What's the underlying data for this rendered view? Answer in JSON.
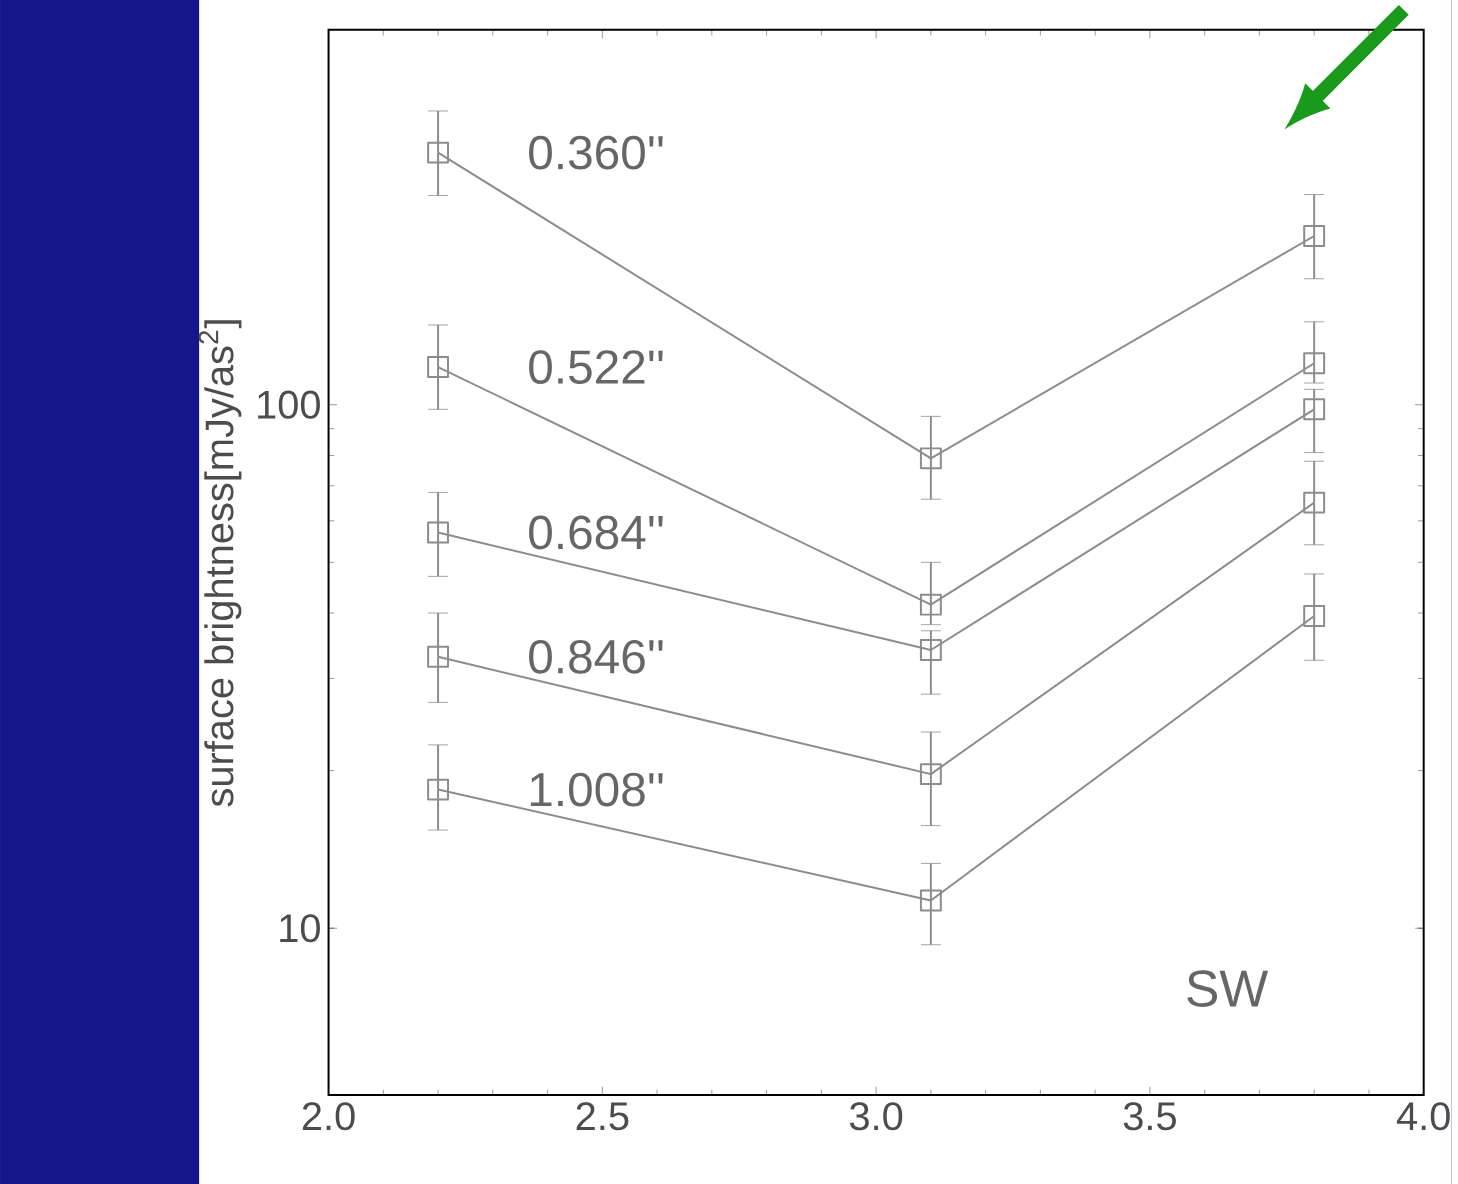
{
  "chart_data": {
    "type": "line",
    "ylabel": "surface brightness[mJy/as$^{2}$]",
    "log": "y",
    "marker": "square",
    "line_style": "solid",
    "legend": "left",
    "x": [
      2.2,
      3.1,
      3.8
    ],
    "xlim": [
      2.0,
      4.0
    ],
    "xticks": [
      {
        "value": 2.0,
        "label": "2.0"
      },
      {
        "value": 2.5,
        "label": "2.5"
      },
      {
        "value": 3.0,
        "label": "3.0"
      },
      {
        "value": 3.5,
        "label": "3.5"
      },
      {
        "value": 4.0,
        "label": "4.0"
      }
    ],
    "ylim": [
      4.8,
      520
    ],
    "yticks": [
      10,
      100
    ],
    "series": [
      {
        "name": "0.360''",
        "color": "#8c8c8c",
        "values": [
          303,
          79,
          210
        ],
        "errors": [
          [
            251,
            364
          ],
          [
            66,
            95
          ],
          [
            174,
            252
          ]
        ]
      },
      {
        "name": "0.522''",
        "color": "#8c8c8c",
        "values": [
          118,
          41.5,
          120
        ],
        "errors": [
          [
            98,
            142
          ],
          [
            38,
            50
          ],
          [
            110,
            144
          ]
        ]
      },
      {
        "name": "0.684''",
        "color": "#8c8c8c",
        "values": [
          57,
          34,
          98
        ],
        "errors": [
          [
            47,
            68
          ],
          [
            28,
            37
          ],
          [
            81,
            107
          ]
        ]
      },
      {
        "name": "0.846''",
        "color": "#8c8c8c",
        "values": [
          33,
          19.7,
          65
        ],
        "errors": [
          [
            27,
            40
          ],
          [
            15.7,
            23.7
          ],
          [
            54,
            78
          ]
        ]
      },
      {
        "name": "1.008''",
        "color": "#8c8c8c",
        "values": [
          18.4,
          11.3,
          39.5
        ],
        "errors": [
          [
            15.4,
            22.4
          ],
          [
            9.3,
            13.3
          ],
          [
            32.5,
            47.5
          ]
        ]
      }
    ],
    "annotations": [
      "SW"
    ]
  }
}
